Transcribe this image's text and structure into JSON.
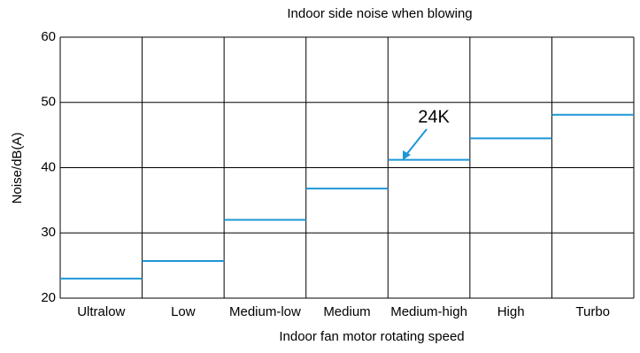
{
  "chart_data": {
    "type": "step",
    "title": "Indoor side noise when blowing",
    "x_label": "Indoor fan motor rotating speed",
    "y_label": "Noise/dB(A)",
    "categories": [
      "Ultralow",
      "Low",
      "Medium-low",
      "Medium",
      "Medium-high",
      "High",
      "Turbo"
    ],
    "values": [
      23,
      25.7,
      32,
      36.8,
      41.2,
      44.5,
      48.1
    ],
    "color": "#1e96d6",
    "ylim": [
      20,
      60
    ],
    "yticks": [
      20,
      30,
      40,
      50,
      60
    ],
    "grid": true,
    "annotations": [
      {
        "text": "24K"
      }
    ]
  }
}
